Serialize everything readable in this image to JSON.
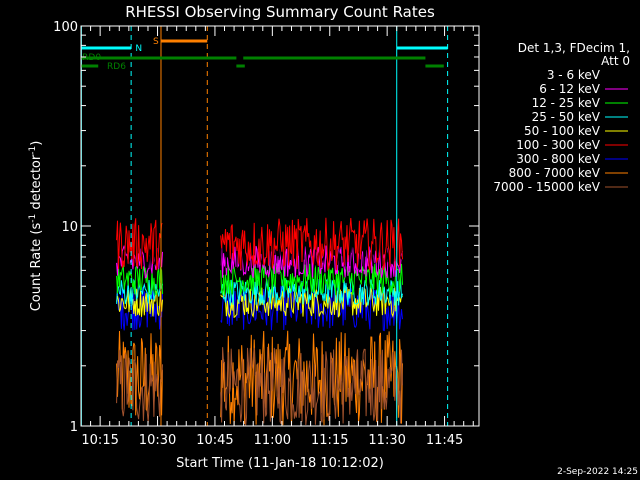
{
  "chart_data": {
    "type": "line",
    "title": "RHESSI Observing Summary Count Rates",
    "xlabel": "Start Time (11-Jan-18 10:12:02)",
    "ylabel_main": "Count Rate (s",
    "ylabel_sup1": "-1",
    "ylabel_mid": " detector",
    "ylabel_sup2": "-1",
    "ylabel_end": ")",
    "y_scale": "log",
    "ylim": [
      1,
      100
    ],
    "xlim_minutes": [
      10.0,
      114.0
    ],
    "x_ticks": [
      {
        "label": "10:15",
        "minute": 15
      },
      {
        "label": "10:30",
        "minute": 30
      },
      {
        "label": "10:45",
        "minute": 45
      },
      {
        "label": "11:00",
        "minute": 60
      },
      {
        "label": "11:15",
        "minute": 75
      },
      {
        "label": "11:30",
        "minute": 90
      },
      {
        "label": "11:45",
        "minute": 105
      }
    ],
    "y_ticks": [
      {
        "label": "1",
        "value": 1
      },
      {
        "label": "10",
        "value": 10
      },
      {
        "label": "100",
        "value": 100
      }
    ],
    "legend_header": [
      "Det 1,3, FDecim 1,",
      "Att 0"
    ],
    "legend_placement": "right",
    "series": [
      {
        "name": "3 - 6 keV",
        "color": "#000000",
        "level": [
          6,
          11
        ]
      },
      {
        "name": "6 - 12 keV",
        "color": "#ff00ff",
        "level": [
          5.5,
          8
        ]
      },
      {
        "name": "12 - 25 keV",
        "color": "#00ff00",
        "level": [
          4.5,
          6.5
        ]
      },
      {
        "name": "25 - 50 keV",
        "color": "#00ffff",
        "level": [
          4,
          5.5
        ]
      },
      {
        "name": "50 - 100 keV",
        "color": "#ffff00",
        "level": [
          3.5,
          5
        ]
      },
      {
        "name": "100 - 300 keV",
        "color": "#ff0000",
        "level": [
          6,
          11
        ]
      },
      {
        "name": "300 - 800 keV",
        "color": "#0000ff",
        "level": [
          3,
          5
        ]
      },
      {
        "name": "800 - 7000 keV",
        "color": "#ff8000",
        "level": [
          1,
          3
        ]
      },
      {
        "name": "7000 - 15000 keV",
        "color": "#a0522d",
        "level": [
          1,
          2.5
        ]
      }
    ],
    "data_intervals_minutes": [
      [
        19.3,
        31.3
      ],
      [
        46.5,
        94.0
      ]
    ],
    "flags": [
      {
        "label": "N",
        "color": "#00ffff",
        "segments": [
          [
            10.1,
            23.1
          ],
          [
            92.5,
            105.8
          ]
        ]
      },
      {
        "label": "S",
        "color": "#ff8000",
        "segments": [
          [
            30.9,
            43.0
          ]
        ]
      },
      {
        "label": "RD0",
        "color": "#008000",
        "segments": [
          [
            10.1,
            50.6
          ],
          [
            52.4,
            100.0
          ]
        ]
      },
      {
        "label": "RD6",
        "color": "#008000",
        "segments": [
          [
            10.1,
            14.5
          ],
          [
            50.6,
            52.8
          ],
          [
            100.0,
            104.8
          ]
        ]
      }
    ],
    "vertical_markers": [
      {
        "minute": 10.1,
        "color": "#00ffff",
        "style": "solid"
      },
      {
        "minute": 23.1,
        "color": "#00ffff",
        "style": "dashed"
      },
      {
        "minute": 30.9,
        "color": "#ff8000",
        "style": "solid"
      },
      {
        "minute": 43.0,
        "color": "#ff8000",
        "style": "dashed"
      },
      {
        "minute": 92.5,
        "color": "#00ffff",
        "style": "solid"
      },
      {
        "minute": 105.8,
        "color": "#00ffff",
        "style": "dashed"
      }
    ]
  },
  "footer": {
    "date": "2-Sep-2022 14:25"
  }
}
